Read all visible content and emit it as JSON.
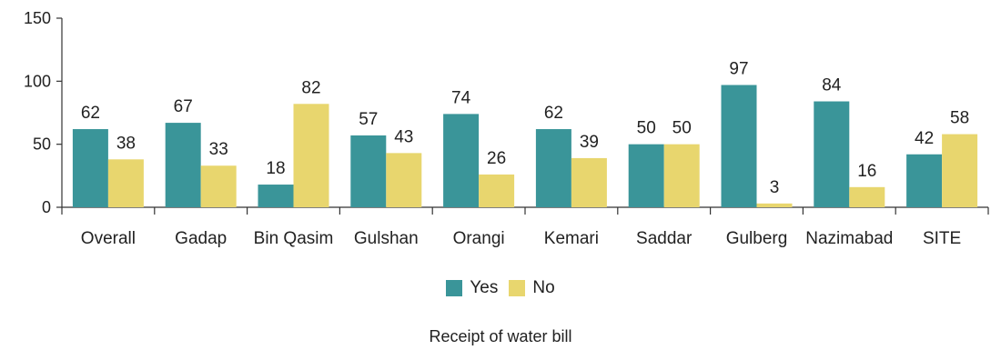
{
  "chart_data": {
    "type": "bar",
    "title": "",
    "xlabel": "Receipt of water bill",
    "ylabel": "",
    "ylim": [
      0,
      150
    ],
    "yticks": [
      0,
      50,
      100,
      150
    ],
    "categories": [
      "Overall",
      "Gadap",
      "Bin Qasim",
      "Gulshan",
      "Orangi",
      "Kemari",
      "Saddar",
      "Gulberg",
      "Nazimabad",
      "SITE"
    ],
    "series": [
      {
        "name": "Yes",
        "color": "#3a9599",
        "values": [
          62,
          67,
          18,
          57,
          74,
          62,
          50,
          97,
          84,
          42
        ]
      },
      {
        "name": "No",
        "color": "#e8d66e",
        "values": [
          38,
          33,
          82,
          43,
          26,
          39,
          50,
          3,
          16,
          58
        ]
      }
    ],
    "legend_position": "bottom",
    "grid": false
  }
}
